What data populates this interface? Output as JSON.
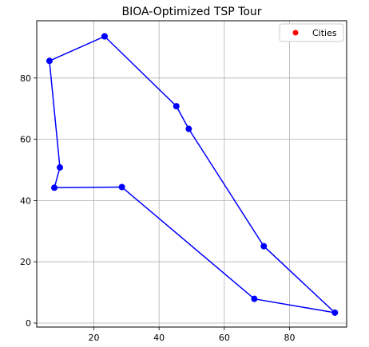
{
  "chart_data": {
    "type": "line",
    "title": "BIOA-Optimized TSP Tour",
    "xlabel": "",
    "ylabel": "",
    "xlim": [
      2.5,
      97.5
    ],
    "ylim": [
      -1.3,
      98.7
    ],
    "xticks": [
      20,
      40,
      60,
      80
    ],
    "yticks": [
      0,
      20,
      40,
      60,
      80
    ],
    "grid": true,
    "legend": {
      "position": "top-right",
      "entries": [
        {
          "label": "Cities",
          "color": "#ff0000"
        }
      ]
    },
    "series": [
      {
        "line_color": "#0000ff",
        "marker_color": "#0000ff",
        "points": [
          {
            "x": 23.3,
            "y": 93.6
          },
          {
            "x": 6.4,
            "y": 85.6
          },
          {
            "x": 9.6,
            "y": 50.8
          },
          {
            "x": 7.9,
            "y": 44.2
          },
          {
            "x": 28.6,
            "y": 44.4
          },
          {
            "x": 69.2,
            "y": 7.9
          },
          {
            "x": 93.9,
            "y": 3.4
          },
          {
            "x": 72.1,
            "y": 25.1
          },
          {
            "x": 49.1,
            "y": 63.4
          },
          {
            "x": 45.3,
            "y": 70.8
          },
          {
            "x": 23.3,
            "y": 93.6
          }
        ]
      }
    ]
  }
}
